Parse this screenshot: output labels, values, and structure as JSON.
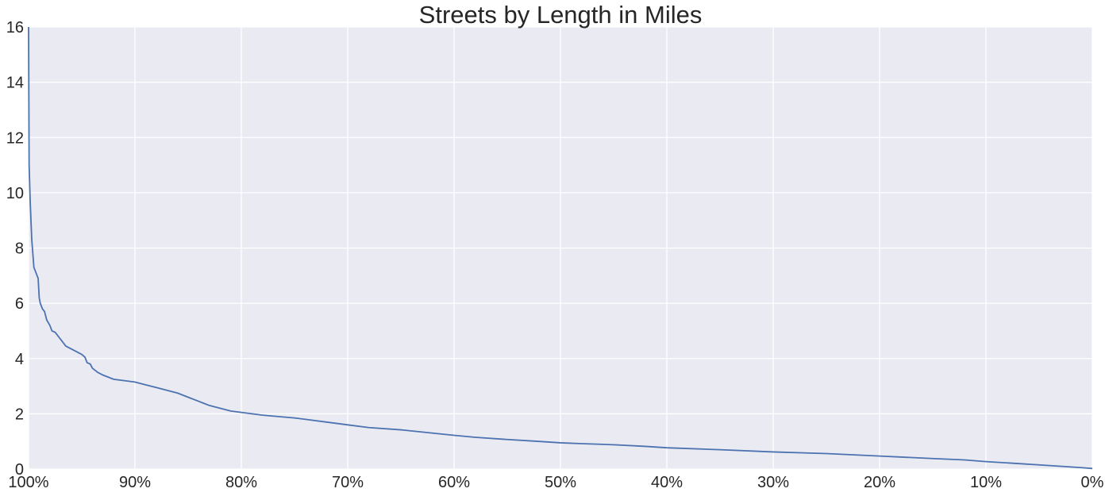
{
  "chart_data": {
    "type": "line",
    "title": "Streets by Length in Miles",
    "xlabel": "",
    "ylabel": "",
    "x_axis_direction": "reversed",
    "xlim": [
      100,
      0
    ],
    "ylim": [
      0,
      16
    ],
    "x_ticks": [
      100,
      90,
      80,
      70,
      60,
      50,
      40,
      30,
      20,
      10,
      0
    ],
    "x_tick_labels": [
      "100%",
      "90%",
      "80%",
      "70%",
      "60%",
      "50%",
      "40%",
      "30%",
      "20%",
      "10%",
      "0%"
    ],
    "y_ticks": [
      0,
      2,
      4,
      6,
      8,
      10,
      12,
      14,
      16
    ],
    "y_tick_labels": [
      "0",
      "2",
      "4",
      "6",
      "8",
      "10",
      "12",
      "14",
      "16"
    ],
    "grid": true,
    "background_color": "#eaeaf2",
    "grid_color": "#ffffff",
    "line_color": "#4c72b0",
    "series": [
      {
        "x": [
          100,
          99.95,
          99.85,
          99.7,
          99.5,
          99.3,
          99.1,
          99.0,
          98.9,
          98.7,
          98.5,
          98.3,
          98.0,
          97.8,
          97.5,
          97.0,
          96.8,
          96.5,
          96.0,
          95.5,
          95.0,
          94.7,
          94.5,
          94.2,
          94.0,
          93.5,
          93.0,
          92.0,
          91.0,
          90.0,
          89.0,
          88.0,
          87.0,
          86.0,
          85.0,
          84.0,
          83.0,
          82.0,
          81.0,
          80.0,
          78.0,
          75.0,
          72.0,
          70.0,
          68.0,
          65.0,
          62.0,
          60.0,
          58.0,
          55.0,
          52.0,
          50.0,
          48.0,
          45.0,
          42.0,
          40.0,
          35.0,
          30.0,
          25.0,
          20.0,
          15.0,
          12.0,
          10.0,
          7.0,
          5.0,
          3.0,
          1.0,
          0.0
        ],
        "y": [
          16.0,
          11.0,
          9.7,
          8.3,
          7.3,
          7.1,
          6.9,
          6.2,
          6.0,
          5.8,
          5.7,
          5.4,
          5.2,
          5.0,
          4.95,
          4.7,
          4.6,
          4.45,
          4.35,
          4.25,
          4.15,
          4.05,
          3.85,
          3.8,
          3.65,
          3.5,
          3.4,
          3.25,
          3.2,
          3.15,
          3.05,
          2.95,
          2.85,
          2.75,
          2.6,
          2.45,
          2.3,
          2.2,
          2.1,
          2.05,
          1.95,
          1.85,
          1.7,
          1.6,
          1.5,
          1.42,
          1.3,
          1.22,
          1.15,
          1.07,
          1.0,
          0.95,
          0.92,
          0.88,
          0.82,
          0.77,
          0.7,
          0.62,
          0.56,
          0.47,
          0.38,
          0.33,
          0.27,
          0.2,
          0.15,
          0.1,
          0.05,
          0.02
        ]
      }
    ]
  }
}
